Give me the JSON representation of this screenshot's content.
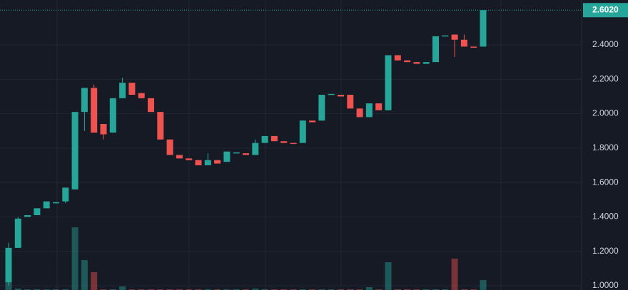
{
  "chart_data": {
    "type": "candlestick",
    "up_color": "#26a69a",
    "down_color": "#ef5350",
    "open": [
      1.02,
      1.22,
      1.4,
      1.41,
      1.45,
      1.48,
      1.49,
      1.56,
      2.01,
      2.15,
      1.94,
      1.89,
      2.09,
      2.18,
      2.12,
      2.09,
      2.01,
      1.85,
      1.76,
      1.74,
      1.73,
      1.7,
      1.73,
      1.72,
      1.77,
      1.77,
      1.76,
      1.83,
      1.87,
      1.84,
      1.83,
      1.83,
      1.96,
      1.96,
      2.11,
      2.11,
      2.11,
      2.03,
      1.98,
      2.06,
      2.02,
      2.34,
      2.31,
      2.3,
      2.29,
      2.3,
      2.45,
      2.46,
      2.43,
      2.39,
      2.39
    ],
    "high": [
      1.25,
      1.4,
      1.41,
      1.45,
      1.49,
      1.49,
      1.57,
      2.01,
      2.15,
      2.17,
      1.94,
      2.09,
      2.21,
      2.18,
      2.12,
      2.09,
      2.01,
      1.85,
      1.76,
      1.74,
      1.73,
      1.77,
      1.73,
      1.78,
      1.775,
      1.77,
      1.85,
      1.87,
      1.87,
      1.84,
      1.83,
      1.96,
      1.96,
      2.11,
      2.115,
      2.11,
      2.11,
      2.03,
      2.06,
      2.06,
      2.34,
      2.34,
      2.31,
      2.3,
      2.3,
      2.45,
      2.455,
      2.46,
      2.46,
      2.39,
      2.602
    ],
    "low": [
      1.0,
      1.22,
      1.4,
      1.41,
      1.45,
      1.48,
      1.48,
      1.56,
      1.9,
      1.89,
      1.85,
      1.89,
      2.09,
      2.11,
      2.09,
      2.01,
      1.85,
      1.76,
      1.74,
      1.73,
      1.7,
      1.7,
      1.71,
      1.72,
      1.77,
      1.76,
      1.76,
      1.83,
      1.84,
      1.83,
      1.825,
      1.83,
      1.95,
      1.96,
      2.11,
      2.1,
      2.03,
      1.98,
      1.98,
      2.02,
      2.02,
      2.31,
      2.3,
      2.29,
      2.29,
      2.3,
      2.45,
      2.33,
      2.39,
      2.385,
      2.39
    ],
    "close": [
      1.22,
      1.39,
      1.41,
      1.45,
      1.49,
      1.485,
      1.57,
      2.01,
      2.15,
      1.89,
      1.88,
      2.09,
      2.18,
      2.11,
      2.09,
      2.01,
      1.85,
      1.76,
      1.74,
      1.73,
      1.7,
      1.73,
      1.71,
      1.78,
      1.775,
      1.76,
      1.83,
      1.87,
      1.84,
      1.83,
      1.825,
      1.96,
      1.95,
      2.11,
      2.115,
      2.1,
      2.03,
      1.98,
      2.06,
      2.02,
      2.34,
      2.31,
      2.3,
      2.29,
      2.3,
      2.45,
      2.455,
      2.43,
      2.39,
      2.385,
      2.602
    ],
    "volume": [
      37,
      2,
      1,
      1,
      1,
      1,
      1,
      88,
      42,
      25,
      1,
      1,
      5,
      1,
      1,
      1,
      1,
      1,
      1,
      1,
      1,
      1,
      1,
      1,
      1,
      1,
      2,
      1,
      1,
      1,
      1,
      1,
      1,
      1,
      1,
      1,
      1,
      1,
      4,
      1,
      39,
      1,
      1,
      1,
      1,
      1,
      1,
      44,
      1,
      1,
      14
    ],
    "vlim": [
      0,
      100
    ],
    "ylim": [
      0.975,
      2.661
    ],
    "yticks": [
      {
        "value": 1.0,
        "label": "1.0000"
      },
      {
        "value": 1.2,
        "label": "1.2000"
      },
      {
        "value": 1.4,
        "label": "1.4000"
      },
      {
        "value": 1.6,
        "label": "1.6000"
      },
      {
        "value": 1.8,
        "label": "1.8000"
      },
      {
        "value": 2.0,
        "label": "2.0000"
      },
      {
        "value": 2.2,
        "label": "2.2000"
      },
      {
        "value": 2.4,
        "label": "2.4000"
      }
    ],
    "last_price": {
      "value": 2.602,
      "label": "2.6020"
    },
    "grid": true
  }
}
